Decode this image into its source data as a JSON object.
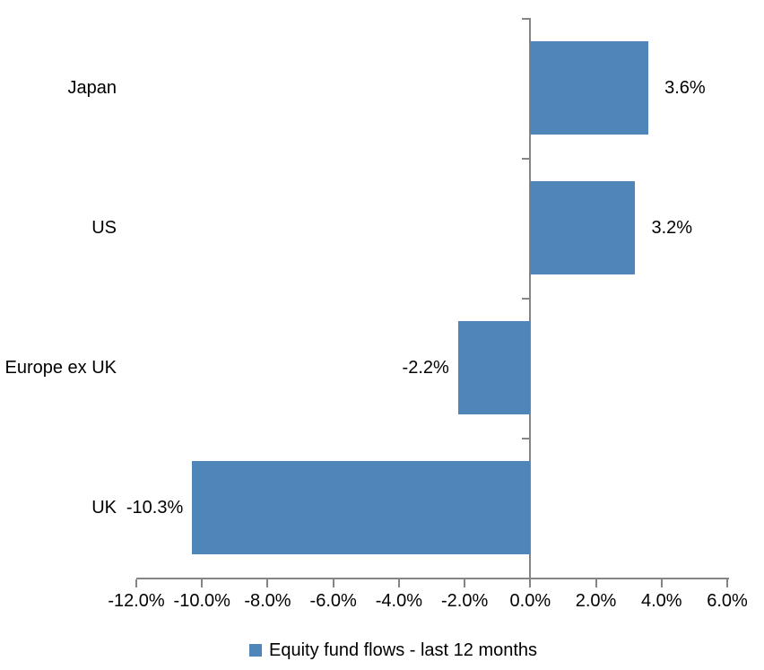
{
  "chart_data": {
    "type": "bar",
    "orientation": "horizontal",
    "title": "",
    "xlabel": "",
    "ylabel": "",
    "categories": [
      "Japan",
      "US",
      "Europe ex UK",
      "UK"
    ],
    "series": [
      {
        "name": "Equity fund flows - last 12 months",
        "values": [
          3.6,
          3.2,
          -2.2,
          -10.3
        ],
        "value_labels": [
          "3.6%",
          "3.2%",
          "-2.2%",
          "-10.3%"
        ]
      }
    ],
    "xlim": [
      -12,
      6
    ],
    "x_tick_step": 2,
    "x_tick_labels": [
      "-12.0%",
      "-10.0%",
      "-8.0%",
      "-6.0%",
      "-4.0%",
      "-2.0%",
      "0.0%",
      "2.0%",
      "4.0%",
      "6.0%"
    ],
    "grid": false,
    "legend_position": "bottom",
    "colors": {
      "bar": "#4E86BA",
      "axis": "#858585",
      "text": "#000000",
      "background": "#FFFFFF"
    }
  },
  "legend": {
    "label": "Equity fund flows - last 12 months"
  }
}
